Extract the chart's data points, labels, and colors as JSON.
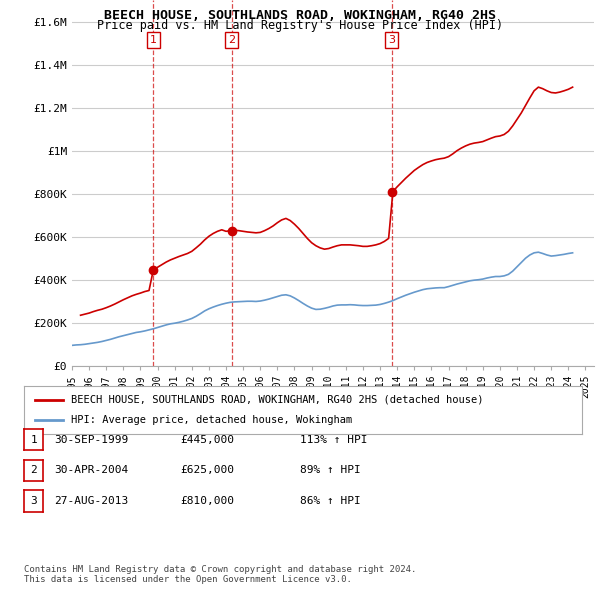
{
  "title": "BEECH HOUSE, SOUTHLANDS ROAD, WOKINGHAM, RG40 2HS",
  "subtitle": "Price paid vs. HM Land Registry's House Price Index (HPI)",
  "ylabel_ticks": [
    "£0",
    "£200K",
    "£400K",
    "£600K",
    "£800K",
    "£1M",
    "£1.2M",
    "£1.4M",
    "£1.6M"
  ],
  "ytick_values": [
    0,
    200000,
    400000,
    600000,
    800000,
    1000000,
    1200000,
    1400000,
    1600000
  ],
  "ylim": [
    0,
    1700000
  ],
  "xlim_start": 1995.0,
  "xlim_end": 2025.5,
  "background_color": "#ffffff",
  "grid_color": "#cccccc",
  "sale_color": "#cc0000",
  "hpi_color": "#6699cc",
  "sale_label": "BEECH HOUSE, SOUTHLANDS ROAD, WOKINGHAM, RG40 2HS (detached house)",
  "hpi_label": "HPI: Average price, detached house, Wokingham",
  "transactions": [
    {
      "num": 1,
      "date": "30-SEP-1999",
      "price": 445000,
      "pct": "113%",
      "x": 1999.75
    },
    {
      "num": 2,
      "date": "30-APR-2004",
      "price": 625000,
      "pct": "89%",
      "x": 2004.33
    },
    {
      "num": 3,
      "date": "27-AUG-2013",
      "price": 810000,
      "pct": "86%",
      "x": 2013.67
    }
  ],
  "footer": "Contains HM Land Registry data © Crown copyright and database right 2024.\nThis data is licensed under the Open Government Licence v3.0.",
  "hpi_data_x": [
    1995.0,
    1995.25,
    1995.5,
    1995.75,
    1996.0,
    1996.25,
    1996.5,
    1996.75,
    1997.0,
    1997.25,
    1997.5,
    1997.75,
    1998.0,
    1998.25,
    1998.5,
    1998.75,
    1999.0,
    1999.25,
    1999.5,
    1999.75,
    2000.0,
    2000.25,
    2000.5,
    2000.75,
    2001.0,
    2001.25,
    2001.5,
    2001.75,
    2002.0,
    2002.25,
    2002.5,
    2002.75,
    2003.0,
    2003.25,
    2003.5,
    2003.75,
    2004.0,
    2004.25,
    2004.5,
    2004.75,
    2005.0,
    2005.25,
    2005.5,
    2005.75,
    2006.0,
    2006.25,
    2006.5,
    2006.75,
    2007.0,
    2007.25,
    2007.5,
    2007.75,
    2008.0,
    2008.25,
    2008.5,
    2008.75,
    2009.0,
    2009.25,
    2009.5,
    2009.75,
    2010.0,
    2010.25,
    2010.5,
    2010.75,
    2011.0,
    2011.25,
    2011.5,
    2011.75,
    2012.0,
    2012.25,
    2012.5,
    2012.75,
    2013.0,
    2013.25,
    2013.5,
    2013.75,
    2014.0,
    2014.25,
    2014.5,
    2014.75,
    2015.0,
    2015.25,
    2015.5,
    2015.75,
    2016.0,
    2016.25,
    2016.5,
    2016.75,
    2017.0,
    2017.25,
    2017.5,
    2017.75,
    2018.0,
    2018.25,
    2018.5,
    2018.75,
    2019.0,
    2019.25,
    2019.5,
    2019.75,
    2020.0,
    2020.25,
    2020.5,
    2020.75,
    2021.0,
    2021.25,
    2021.5,
    2021.75,
    2022.0,
    2022.25,
    2022.5,
    2022.75,
    2023.0,
    2023.25,
    2023.5,
    2023.75,
    2024.0,
    2024.25
  ],
  "hpi_data_y": [
    95000,
    97000,
    98000,
    100000,
    103000,
    106000,
    109000,
    113000,
    118000,
    123000,
    129000,
    135000,
    140000,
    145000,
    150000,
    155000,
    158000,
    162000,
    167000,
    172000,
    178000,
    184000,
    190000,
    195000,
    198000,
    202000,
    207000,
    213000,
    220000,
    230000,
    242000,
    255000,
    265000,
    273000,
    280000,
    286000,
    291000,
    295000,
    297000,
    298000,
    299000,
    300000,
    300000,
    299000,
    301000,
    305000,
    310000,
    316000,
    322000,
    328000,
    330000,
    325000,
    315000,
    303000,
    290000,
    278000,
    268000,
    262000,
    263000,
    267000,
    272000,
    278000,
    282000,
    283000,
    283000,
    284000,
    283000,
    281000,
    280000,
    280000,
    281000,
    282000,
    285000,
    290000,
    296000,
    303000,
    312000,
    320000,
    328000,
    335000,
    342000,
    348000,
    354000,
    358000,
    360000,
    362000,
    363000,
    363000,
    368000,
    374000,
    380000,
    385000,
    390000,
    395000,
    398000,
    400000,
    403000,
    408000,
    412000,
    415000,
    415000,
    418000,
    425000,
    440000,
    460000,
    480000,
    500000,
    515000,
    525000,
    528000,
    522000,
    515000,
    510000,
    512000,
    515000,
    518000,
    522000,
    525000
  ],
  "sale_data_x": [
    1995.5,
    1995.75,
    1996.0,
    1996.25,
    1996.5,
    1996.75,
    1997.0,
    1997.25,
    1997.5,
    1997.75,
    1998.0,
    1998.25,
    1998.5,
    1998.75,
    1999.0,
    1999.25,
    1999.5,
    1999.75,
    2000.0,
    2000.25,
    2000.5,
    2000.75,
    2001.0,
    2001.25,
    2001.5,
    2001.75,
    2002.0,
    2002.25,
    2002.5,
    2002.75,
    2003.0,
    2003.25,
    2003.5,
    2003.75,
    2004.0,
    2004.25,
    2004.5,
    2004.75,
    2005.0,
    2005.25,
    2005.5,
    2005.75,
    2006.0,
    2006.25,
    2006.5,
    2006.75,
    2007.0,
    2007.25,
    2007.5,
    2007.75,
    2008.0,
    2008.25,
    2008.5,
    2008.75,
    2009.0,
    2009.25,
    2009.5,
    2009.75,
    2010.0,
    2010.25,
    2010.5,
    2010.75,
    2011.0,
    2011.25,
    2011.5,
    2011.75,
    2012.0,
    2012.25,
    2012.5,
    2012.75,
    2013.0,
    2013.25,
    2013.5,
    2013.75,
    2014.0,
    2014.25,
    2014.5,
    2014.75,
    2015.0,
    2015.25,
    2015.5,
    2015.75,
    2016.0,
    2016.25,
    2016.5,
    2016.75,
    2017.0,
    2017.25,
    2017.5,
    2017.75,
    2018.0,
    2018.25,
    2018.5,
    2018.75,
    2019.0,
    2019.25,
    2019.5,
    2019.75,
    2020.0,
    2020.25,
    2020.5,
    2020.75,
    2021.0,
    2021.25,
    2021.5,
    2021.75,
    2022.0,
    2022.25,
    2022.5,
    2022.75,
    2023.0,
    2023.25,
    2023.5,
    2023.75,
    2024.0,
    2024.25
  ],
  "sale_data_y": [
    235000,
    240000,
    245000,
    252000,
    258000,
    263000,
    270000,
    278000,
    287000,
    297000,
    307000,
    316000,
    325000,
    332000,
    338000,
    345000,
    350000,
    445000,
    458000,
    470000,
    482000,
    492000,
    500000,
    508000,
    515000,
    522000,
    532000,
    548000,
    565000,
    585000,
    602000,
    615000,
    625000,
    632000,
    625000,
    628000,
    630000,
    628000,
    625000,
    622000,
    620000,
    618000,
    620000,
    628000,
    638000,
    650000,
    665000,
    678000,
    685000,
    675000,
    658000,
    638000,
    615000,
    592000,
    572000,
    558000,
    548000,
    542000,
    545000,
    552000,
    558000,
    562000,
    562000,
    562000,
    560000,
    558000,
    555000,
    555000,
    558000,
    562000,
    568000,
    578000,
    592000,
    810000,
    832000,
    852000,
    872000,
    890000,
    908000,
    922000,
    935000,
    945000,
    952000,
    958000,
    962000,
    965000,
    972000,
    985000,
    1000000,
    1012000,
    1022000,
    1030000,
    1035000,
    1038000,
    1042000,
    1050000,
    1058000,
    1065000,
    1068000,
    1075000,
    1090000,
    1115000,
    1145000,
    1175000,
    1210000,
    1245000,
    1278000,
    1295000,
    1288000,
    1278000,
    1270000,
    1268000,
    1272000,
    1278000,
    1285000,
    1295000
  ]
}
